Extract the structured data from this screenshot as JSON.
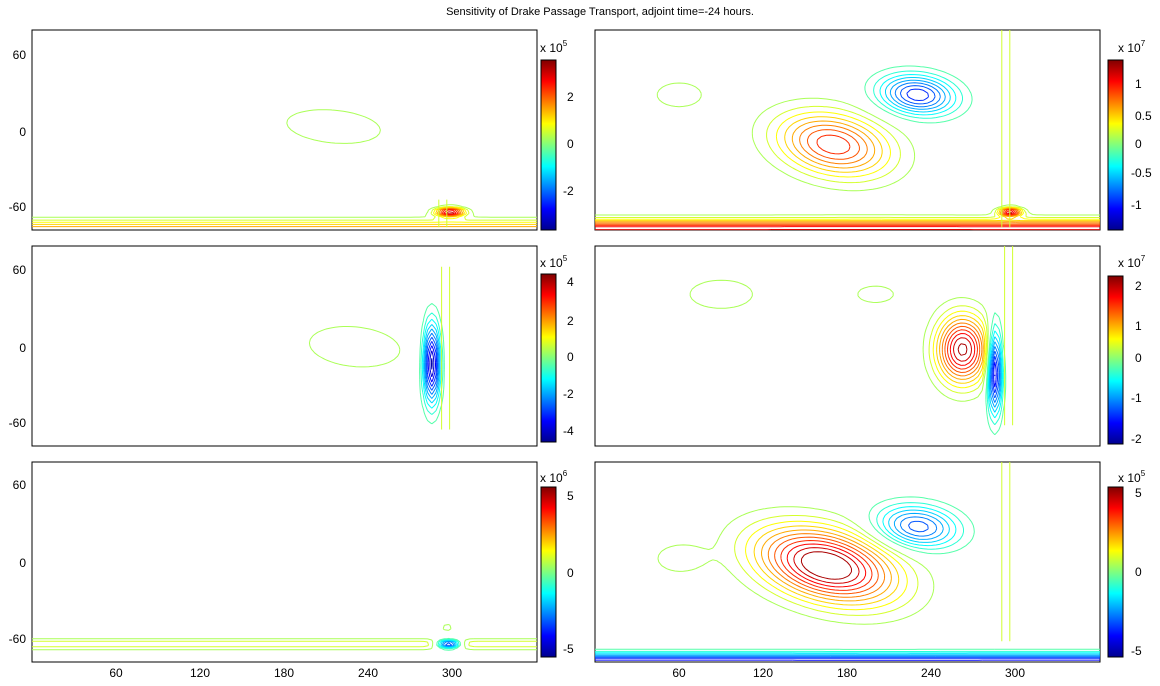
{
  "figure": {
    "title": "Sensitivity of Drake Passage Transport, adjoint time=-24 hours."
  },
  "chart_data": [
    {
      "type": "contour",
      "position": "row 1, left",
      "xlim": [
        0,
        360
      ],
      "ylim": [
        -70,
        75
      ],
      "xticks": [],
      "yticks": [
        60,
        0,
        -60
      ],
      "colorbar": {
        "multiplier": "x 10",
        "exponent": "5",
        "ticks": [
          2,
          0,
          -2
        ],
        "clim": [
          -3.4,
          3.4
        ]
      },
      "features": [
        {
          "kind": "peak",
          "x": 215,
          "y": 5,
          "sx": 60,
          "sy": 22,
          "value": 0.38,
          "wx": 0.45
        },
        {
          "kind": "peak",
          "x": 90,
          "y": 45,
          "sx": 28,
          "sy": 12,
          "value": 0.15
        },
        {
          "kind": "jet",
          "x": 298,
          "y": -57,
          "sx": 10,
          "sy": 3,
          "value": 3.3
        },
        {
          "kind": "band",
          "y": -70,
          "sy": 7,
          "value": 1.6
        },
        {
          "kind": "barrier",
          "x": 290,
          "y0": -68,
          "y1": -48
        }
      ]
    },
    {
      "type": "contour",
      "position": "row 1, right",
      "xlim": [
        0,
        360
      ],
      "ylim": [
        -70,
        75
      ],
      "xticks": [],
      "yticks": [],
      "colorbar": {
        "multiplier": "x 10",
        "exponent": "7",
        "ticks": [
          1,
          0.5,
          0,
          -0.5,
          -1
        ],
        "clim": [
          -1.3,
          1.3
        ]
      },
      "features": [
        {
          "kind": "peak",
          "x": 170,
          "y": -8,
          "sx": 38,
          "sy": 22,
          "value": 0.95,
          "wx": 0.5
        },
        {
          "kind": "peak",
          "x": 230,
          "y": 28,
          "sx": 26,
          "sy": 14,
          "value": -0.95,
          "wx": 0.3
        },
        {
          "kind": "peak",
          "x": 60,
          "y": 28,
          "sx": 22,
          "sy": 12,
          "value": 0.18
        },
        {
          "kind": "band",
          "y": -70,
          "sy": 7,
          "value": 1.1
        },
        {
          "kind": "jet",
          "x": 296,
          "y": -57,
          "sx": 8,
          "sy": 3,
          "value": 1.2
        },
        {
          "kind": "barrier",
          "x": 290,
          "y0": -68,
          "y1": 75
        }
      ]
    },
    {
      "type": "contour",
      "position": "row 2, left",
      "xlim": [
        0,
        360
      ],
      "ylim": [
        -70,
        75
      ],
      "xticks": [],
      "yticks": [
        60,
        0,
        -60
      ],
      "colorbar": {
        "multiplier": "x 10",
        "exponent": "5",
        "ticks": [
          4,
          2,
          0,
          -2,
          -4
        ],
        "clim": [
          -4.3,
          4.3
        ]
      },
      "features": [
        {
          "kind": "peak",
          "x": 230,
          "y": 2,
          "sx": 55,
          "sy": 25,
          "value": 0.5,
          "wx": 0.35
        },
        {
          "kind": "peak",
          "x": 40,
          "y": -50,
          "sx": 45,
          "sy": 8,
          "value": 0.15
        },
        {
          "kind": "jet",
          "x": 285,
          "y": -10,
          "sx": 6,
          "sy": 28,
          "value": -4.2
        },
        {
          "kind": "barrier",
          "x": 292,
          "y0": -58,
          "y1": 60
        }
      ]
    },
    {
      "type": "contour",
      "position": "row 2, right",
      "xlim": [
        0,
        360
      ],
      "ylim": [
        -70,
        75
      ],
      "xticks": [],
      "yticks": [],
      "colorbar": {
        "multiplier": "x 10",
        "exponent": "7",
        "ticks": [
          2,
          1,
          0,
          -1,
          -2
        ],
        "clim": [
          -2,
          2
        ]
      },
      "features": [
        {
          "kind": "peak",
          "x": 262,
          "y": 0,
          "sx": 18,
          "sy": 24,
          "value": 1.9
        },
        {
          "kind": "peak",
          "x": 285,
          "y": -15,
          "sx": 5,
          "sy": 30,
          "value": -1.9
        },
        {
          "kind": "peak",
          "x": 90,
          "y": 40,
          "sx": 35,
          "sy": 16,
          "value": 0.25
        },
        {
          "kind": "peak",
          "x": 200,
          "y": 40,
          "sx": 30,
          "sy": 14,
          "value": 0.2
        },
        {
          "kind": "peak",
          "x": 50,
          "y": 0,
          "sx": 20,
          "sy": 8,
          "value": 0.12
        },
        {
          "kind": "barrier",
          "x": 292,
          "y0": -55,
          "y1": 75
        }
      ]
    },
    {
      "type": "contour",
      "position": "row 3, left",
      "xlim": [
        0,
        360
      ],
      "ylim": [
        -70,
        75
      ],
      "xticks": [
        60,
        120,
        180,
        240,
        300
      ],
      "yticks": [
        60,
        0,
        -60
      ],
      "colorbar": {
        "multiplier": "x 10",
        "exponent": "6",
        "ticks": [
          5,
          0,
          -5
        ],
        "clim": [
          -5.5,
          5.5
        ]
      },
      "features": [
        {
          "kind": "band",
          "y": -57,
          "sy": 4,
          "value": 1.2
        },
        {
          "kind": "jet",
          "x": 297,
          "y": -57,
          "sx": 8,
          "sy": 3,
          "value": -5.3
        },
        {
          "kind": "peak",
          "x": 296,
          "y": -45,
          "sx": 4,
          "sy": 3,
          "value": 0.8
        }
      ]
    },
    {
      "type": "contour",
      "position": "row 3, right",
      "xlim": [
        0,
        360
      ],
      "ylim": [
        -70,
        75
      ],
      "xticks": [
        60,
        120,
        180,
        240,
        300
      ],
      "yticks": [],
      "colorbar": {
        "multiplier": "x 10",
        "exponent": "5",
        "ticks": [
          5,
          0,
          -5
        ],
        "clim": [
          -5.5,
          5.5
        ]
      },
      "features": [
        {
          "kind": "peak",
          "x": 165,
          "y": 0,
          "sx": 45,
          "sy": 25,
          "value": 5.8,
          "wx": 0.7
        },
        {
          "kind": "peak",
          "x": 230,
          "y": 28,
          "sx": 28,
          "sy": 15,
          "value": -3.5,
          "wx": 0.3
        },
        {
          "kind": "peak",
          "x": 60,
          "y": 5,
          "sx": 20,
          "sy": 12,
          "value": 0.8
        },
        {
          "kind": "band",
          "y": -70,
          "sy": 6,
          "value": -4.5
        },
        {
          "kind": "barrier",
          "x": 290,
          "y0": -55,
          "y1": 75
        }
      ]
    }
  ]
}
